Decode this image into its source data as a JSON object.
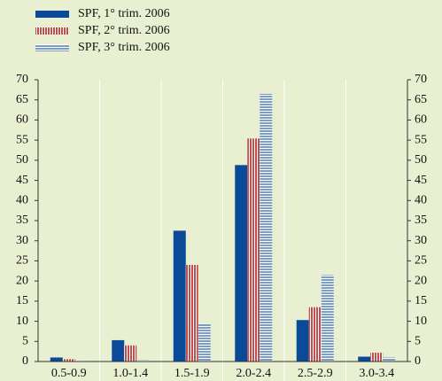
{
  "chart_data": {
    "type": "bar",
    "categories": [
      "0.5-0.9",
      "1.0-1.4",
      "1.5-1.9",
      "2.0-2.4",
      "2.5-2.9",
      "3.0-3.4"
    ],
    "series": [
      {
        "name": "SPF, 1° trim. 2006",
        "color": "#0b4a98",
        "pattern": "solid",
        "values": [
          1.0,
          5.3,
          32.5,
          48.8,
          10.3,
          1.2
        ]
      },
      {
        "name": "SPF, 2° trim. 2006",
        "color": "#c0504d",
        "pattern": "vertical-stripes",
        "values": [
          0.6,
          4.0,
          24.0,
          55.4,
          13.5,
          2.2
        ]
      },
      {
        "name": "SPF, 3° trim. 2006",
        "color": "#7d9ec4",
        "pattern": "horizontal-stripes",
        "values": [
          0.2,
          0.3,
          9.3,
          66.5,
          21.5,
          1.0
        ]
      }
    ],
    "ylim": [
      0,
      70
    ],
    "yticks": [
      0,
      5,
      10,
      15,
      20,
      25,
      30,
      35,
      40,
      45,
      50,
      55,
      60,
      65,
      70
    ],
    "y2lim": [
      0,
      70
    ],
    "y2ticks": [
      0,
      5,
      10,
      15,
      20,
      25,
      30,
      35,
      40,
      45,
      50,
      55,
      60,
      65,
      70
    ],
    "legend": "top-left"
  }
}
